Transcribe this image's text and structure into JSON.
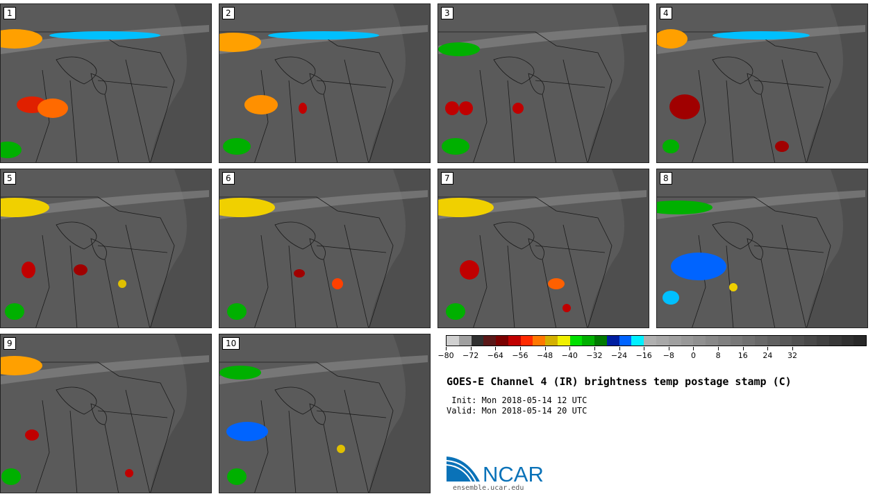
{
  "members": [
    {
      "label": "1"
    },
    {
      "label": "2"
    },
    {
      "label": "3"
    },
    {
      "label": "4"
    },
    {
      "label": "5"
    },
    {
      "label": "6"
    },
    {
      "label": "7"
    },
    {
      "label": "8"
    },
    {
      "label": "9"
    },
    {
      "label": "10"
    }
  ],
  "colorbar": {
    "colors": [
      "#d0d0d0",
      "#a0a0a0",
      "#303030",
      "#5a1818",
      "#7a0000",
      "#c00000",
      "#ff2a00",
      "#ff7800",
      "#d4b000",
      "#f0f000",
      "#00e000",
      "#00b000",
      "#007a00",
      "#001ea0",
      "#0064ff",
      "#00f0ff",
      "#b0b0b0",
      "#a8a8a8",
      "#a0a0a0",
      "#989898",
      "#909090",
      "#888888",
      "#808080",
      "#787878",
      "#707070",
      "#686868",
      "#606060",
      "#585858",
      "#505050",
      "#484848",
      "#404040",
      "#383838",
      "#303030",
      "#282828"
    ],
    "tick_labels": [
      "−80",
      "−72",
      "−64",
      "−56",
      "−48",
      "−40",
      "−32",
      "−24",
      "−16",
      "−8",
      "0",
      "8",
      "16",
      "24",
      "32"
    ]
  },
  "title": "GOES-E Channel 4 (IR) brightness temp postage stamp (C)",
  "init": " Init: Mon 2018-05-14 12 UTC",
  "valid": "Valid: Mon 2018-05-14 20 UTC",
  "logo": {
    "text": "NCAR",
    "url": "ensemble.ucar.edu",
    "color": "#0a72b8"
  }
}
